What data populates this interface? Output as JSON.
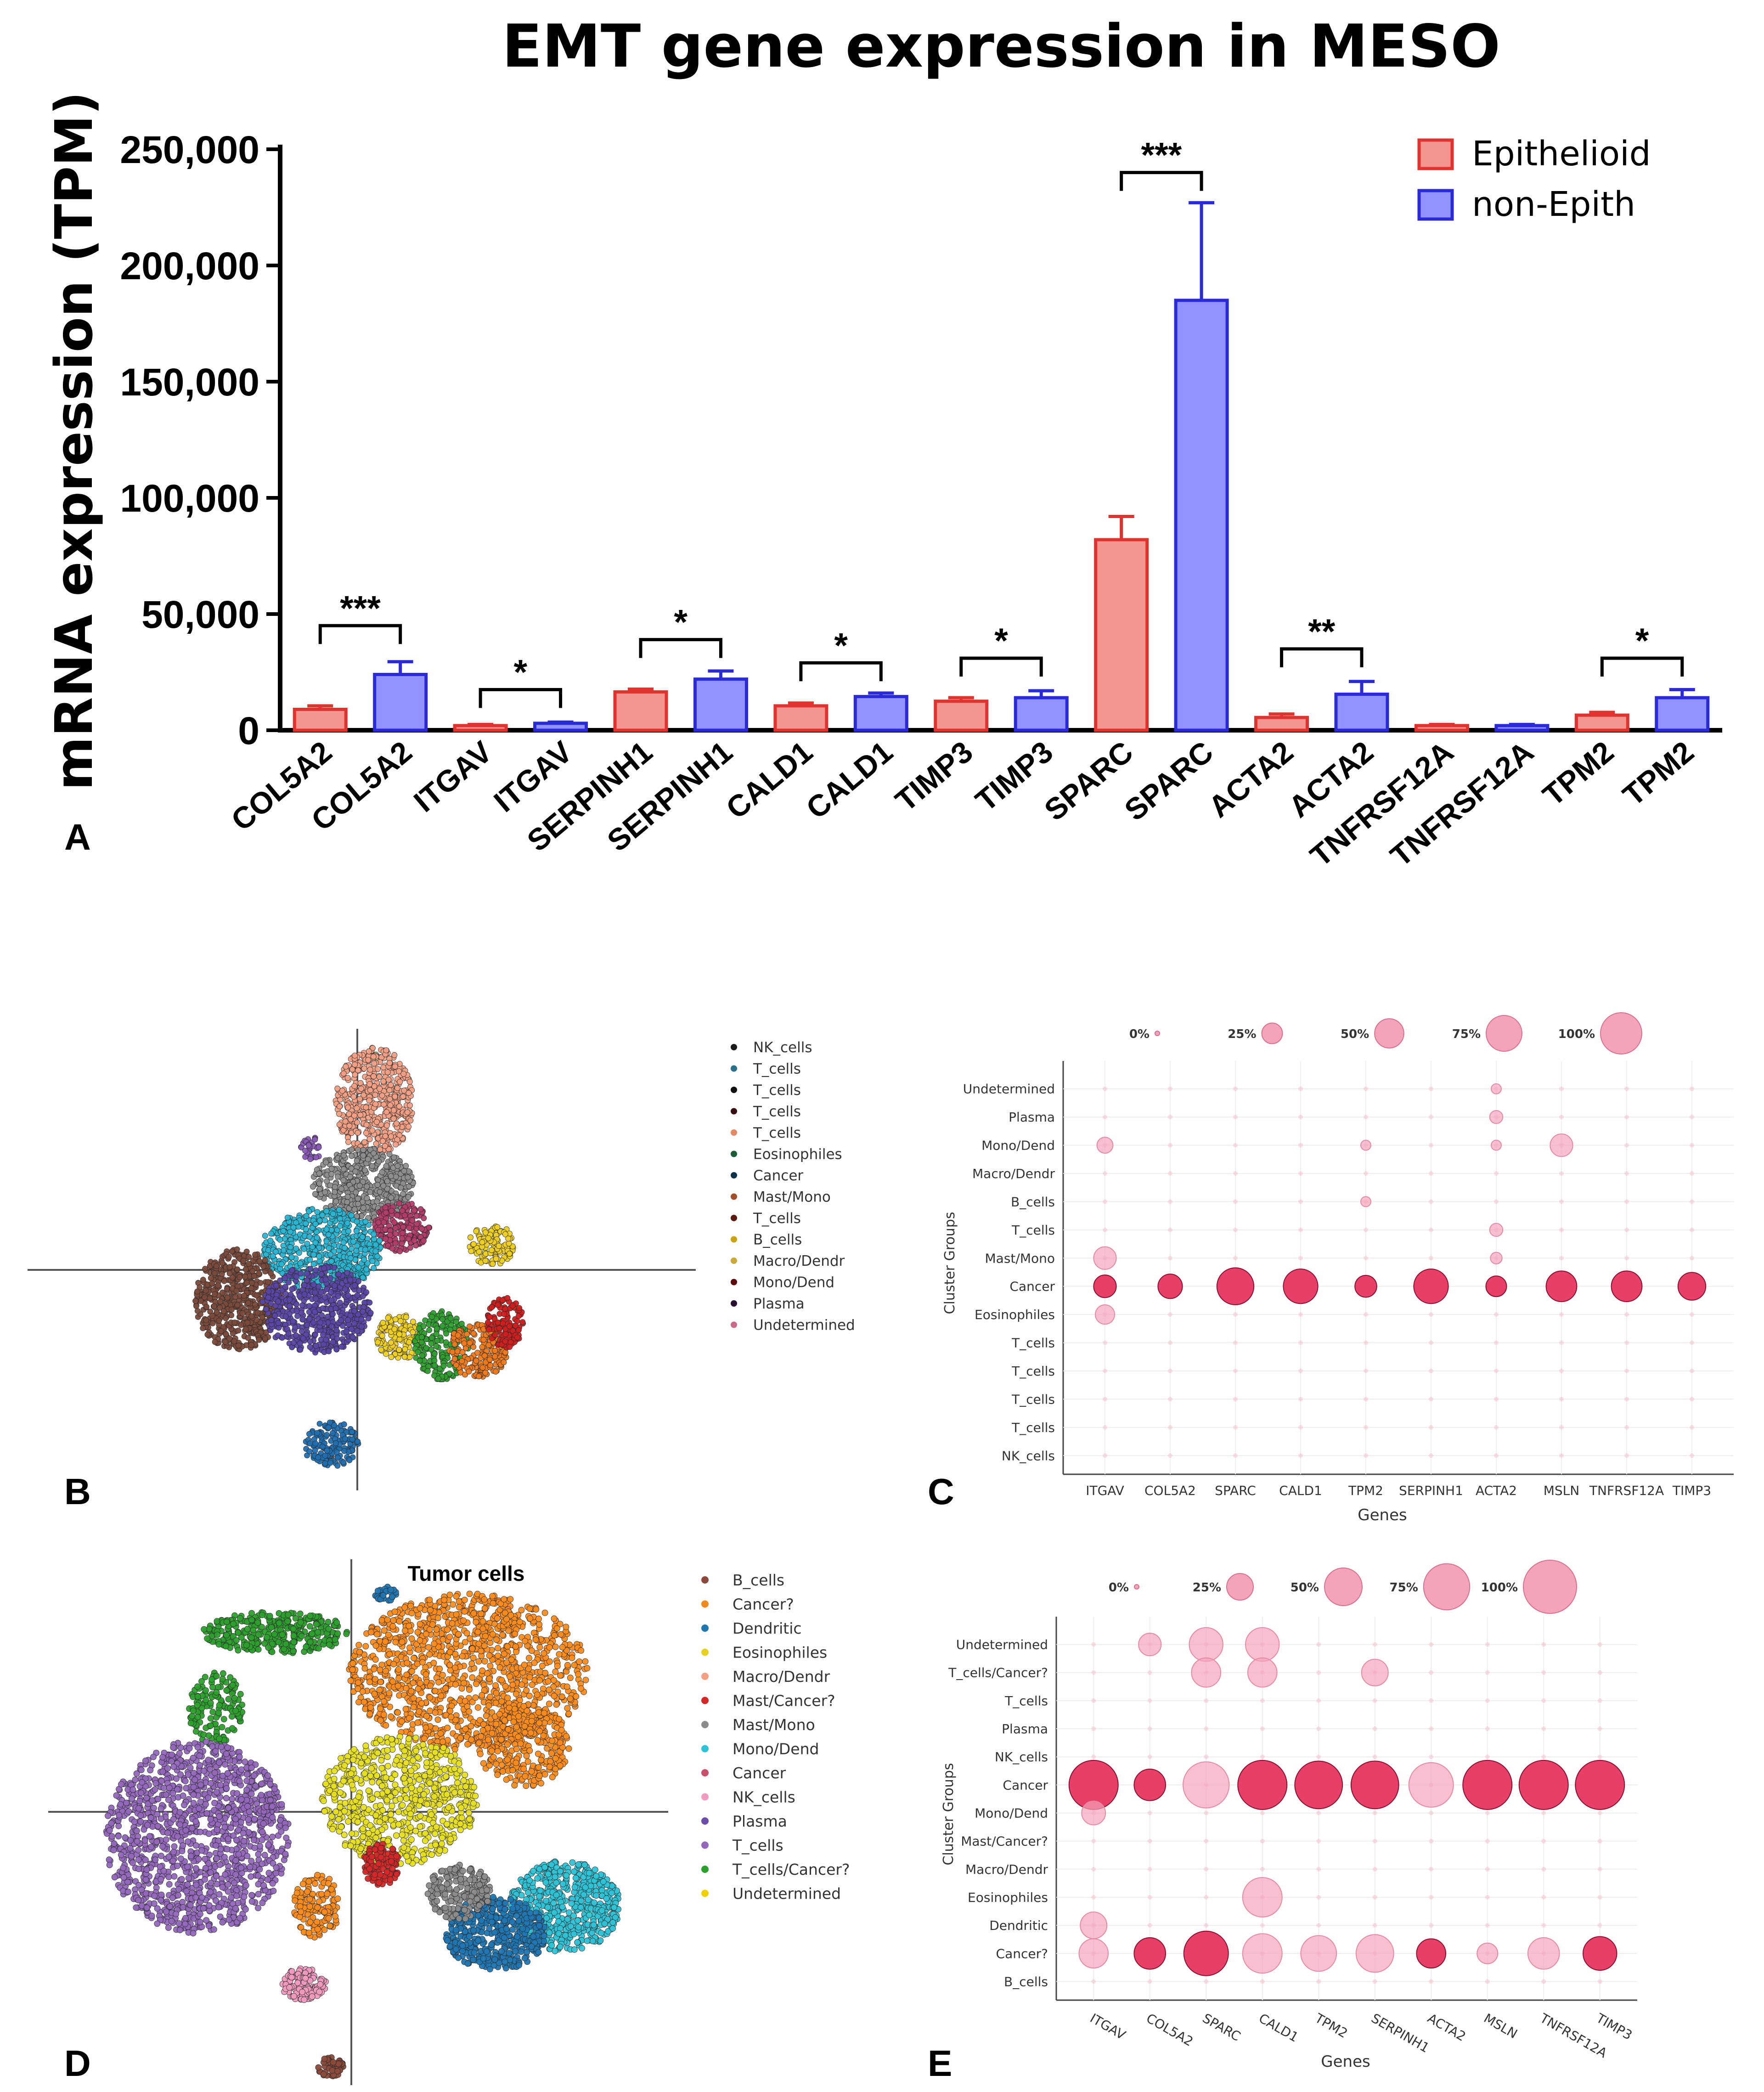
{
  "colors": {
    "epith_fill": "#f5958f",
    "epith_stroke": "#e0322f",
    "nonepith_fill": "#9393ff",
    "nonepith_stroke": "#2a2ad8",
    "dot_strong": "#e6355f",
    "dot_light": "#f3a4bb"
  },
  "chart_data": [
    {
      "panel": "A",
      "type": "bar",
      "title": "EMT gene expression in MESO",
      "ylabel": "mRNA expression (TPM)",
      "ylim": [
        0,
        250000
      ],
      "yticks": [
        0,
        50000,
        100000,
        150000,
        200000,
        250000
      ],
      "ytick_labels": [
        "0",
        "50,000",
        "100,000",
        "150,000",
        "200,000",
        "250,000"
      ],
      "categories": [
        "COL5A2",
        "COL5A2",
        "ITGAV",
        "ITGAV",
        "SERPINH1",
        "SERPINH1",
        "CALD1",
        "CALD1",
        "TIMP3",
        "TIMP3",
        "SPARC",
        "SPARC",
        "ACTA2",
        "ACTA2",
        "TNFRSF12A",
        "TNFRSF12A",
        "TPM2",
        "TPM2"
      ],
      "groups": [
        "Epithelioid",
        "non-Epith",
        "Epithelioid",
        "non-Epith",
        "Epithelioid",
        "non-Epith",
        "Epithelioid",
        "non-Epith",
        "Epithelioid",
        "non-Epith",
        "Epithelioid",
        "non-Epith",
        "Epithelioid",
        "non-Epith",
        "Epithelioid",
        "non-Epith",
        "Epithelioid",
        "non-Epith"
      ],
      "values": [
        9000,
        24000,
        2000,
        3000,
        16500,
        22000,
        10500,
        14500,
        12500,
        14000,
        82000,
        185000,
        5500,
        15500,
        2000,
        2000,
        6500,
        14000
      ],
      "errors": [
        1500,
        5500,
        500,
        500,
        1200,
        3500,
        1200,
        1500,
        1500,
        3000,
        10000,
        42000,
        1500,
        5500,
        500,
        500,
        1200,
        3500
      ],
      "legend": [
        "Epithelioid",
        "non-Epith"
      ],
      "significance": [
        {
          "pair": [
            0,
            1
          ],
          "label": "***",
          "y": 45000
        },
        {
          "pair": [
            2,
            3
          ],
          "label": "*",
          "y": 17500
        },
        {
          "pair": [
            4,
            5
          ],
          "label": "*",
          "y": 39000
        },
        {
          "pair": [
            6,
            7
          ],
          "label": "*",
          "y": 29000
        },
        {
          "pair": [
            8,
            9
          ],
          "label": "*",
          "y": 31000
        },
        {
          "pair": [
            10,
            11
          ],
          "label": "***",
          "y": 240000
        },
        {
          "pair": [
            12,
            13
          ],
          "label": "**",
          "y": 35000
        },
        {
          "pair": [
            16,
            17
          ],
          "label": "*",
          "y": 31000
        }
      ]
    },
    {
      "panel": "B",
      "type": "scatter",
      "title": "",
      "legend": [
        "NK_cells",
        "T_cells",
        "T_cells",
        "T_cells",
        "T_cells",
        "Eosinophiles",
        "Cancer",
        "Mast/Mono",
        "T_cells",
        "B_cells",
        "Macro/Dendr",
        "Mono/Dend",
        "Plasma",
        "Undetermined"
      ],
      "legend_colors": [
        "#1b1b1b",
        "#2b6f8a",
        "#111111",
        "#3a0f14",
        "#e38a64",
        "#1d5e3a",
        "#10324a",
        "#a14e2a",
        "#5a1a10",
        "#c9a40f",
        "#c9a93a",
        "#5c0a0a",
        "#2a1030",
        "#c96a8a"
      ],
      "clusters": [
        {
          "label": "Macro/Dendr",
          "color": "#f4a085"
        },
        {
          "label": "Mast/Mono",
          "color": "#8e8e8e"
        },
        {
          "label": "Plasma",
          "color": "#b33c6a"
        },
        {
          "label": "Cancer",
          "color": "#29b6d4"
        },
        {
          "label": "T_cells",
          "color": "#7b4a3a"
        },
        {
          "label": "T_cells",
          "color": "#5b46a8"
        },
        {
          "label": "B_cells",
          "color": "#f0d020"
        },
        {
          "label": "Eosinophiles",
          "color": "#2fa02f"
        },
        {
          "label": "Mono/Dend",
          "color": "#f07a1a"
        },
        {
          "label": "Undetermined",
          "color": "#d21e1e"
        },
        {
          "label": "NK_cells",
          "color": "#1f6fb2"
        }
      ]
    },
    {
      "panel": "C",
      "type": "scatter",
      "subtype": "dotplot",
      "xlabel": "Genes",
      "ylabel": "Cluster Groups",
      "size_legend": [
        "0%",
        "25%",
        "50%",
        "75%",
        "100%"
      ],
      "genes": [
        "ITGAV",
        "COL5A2",
        "SPARC",
        "CALD1",
        "TPM2",
        "SERPINH1",
        "ACTA2",
        "MSLN",
        "TNFRSF12A",
        "TIMP3"
      ],
      "groups": [
        "Undetermined",
        "Plasma",
        "Mono/Dend",
        "Macro/Dendr",
        "B_cells",
        "T_cells",
        "Mast/Mono",
        "Cancer",
        "Eosinophiles",
        "T_cells",
        "T_cells",
        "T_cells",
        "T_cells",
        "NK_cells"
      ],
      "dots": [
        {
          "gene": 0,
          "group": "Cancer",
          "pct": 30,
          "strong": true
        },
        {
          "gene": 1,
          "group": "Cancer",
          "pct": 35,
          "strong": true
        },
        {
          "gene": 2,
          "group": "Cancer",
          "pct": 80,
          "strong": true
        },
        {
          "gene": 3,
          "group": "Cancer",
          "pct": 70,
          "strong": true
        },
        {
          "gene": 4,
          "group": "Cancer",
          "pct": 28,
          "strong": true
        },
        {
          "gene": 5,
          "group": "Cancer",
          "pct": 70,
          "strong": true
        },
        {
          "gene": 6,
          "group": "Cancer",
          "pct": 25,
          "strong": true
        },
        {
          "gene": 7,
          "group": "Cancer",
          "pct": 55,
          "strong": true
        },
        {
          "gene": 8,
          "group": "Cancer",
          "pct": 55,
          "strong": true
        },
        {
          "gene": 9,
          "group": "Cancer",
          "pct": 45,
          "strong": true
        },
        {
          "gene": 0,
          "group": "Mast/Mono",
          "pct": 30,
          "strong": false
        },
        {
          "gene": 0,
          "group": "Eosinophiles",
          "pct": 22,
          "strong": false
        },
        {
          "gene": 0,
          "group": "Mono/Dend",
          "pct": 15,
          "strong": false
        },
        {
          "gene": 7,
          "group": "Mono/Dend",
          "pct": 30,
          "strong": false
        },
        {
          "gene": 6,
          "group": "Plasma",
          "pct": 10,
          "strong": false
        },
        {
          "gene": 6,
          "group": "T_cells",
          "pct": 10,
          "strong": false
        },
        {
          "gene": 6,
          "group": "Mast/Mono",
          "pct": 8,
          "strong": false
        },
        {
          "gene": 6,
          "group": "Mono/Dend",
          "pct": 6,
          "strong": false
        },
        {
          "gene": 4,
          "group": "B_cells",
          "pct": 6,
          "strong": false
        },
        {
          "gene": 4,
          "group": "Mono/Dend",
          "pct": 6,
          "strong": false
        },
        {
          "gene": 6,
          "group": "Undetermined",
          "pct": 6,
          "strong": false
        }
      ]
    },
    {
      "panel": "D",
      "type": "scatter",
      "title": "Tumor cells",
      "legend": [
        "B_cells",
        "Cancer?",
        "Dendritic",
        "Eosinophiles",
        "Macro/Dendr",
        "Mast/Cancer?",
        "Mast/Mono",
        "Mono/Dend",
        "Cancer",
        "NK_cells",
        "Plasma",
        "T_cells",
        "T_cells/Cancer?",
        "Undetermined"
      ],
      "legend_colors": [
        "#8b4a3a",
        "#f08a1e",
        "#1f77b4",
        "#e8d020",
        "#f4a085",
        "#d62728",
        "#8c8c8c",
        "#2ec4d8",
        "#c9506a",
        "#f29ac0",
        "#6a4ea8",
        "#9467bd",
        "#2ca02c",
        "#f0d000"
      ],
      "clusters": [
        {
          "label": "Cancer?",
          "color": "#ff8c1a"
        },
        {
          "label": "T_cells/Cancer?",
          "color": "#2ca02c"
        },
        {
          "label": "T_cells",
          "color": "#9467bd"
        },
        {
          "label": "Undetermined",
          "color": "#e8e020"
        },
        {
          "label": "Mono/Dend",
          "color": "#2ec4d8"
        },
        {
          "label": "Dendritic",
          "color": "#1f77b4"
        },
        {
          "label": "Mast/Mono",
          "color": "#8c8c8c"
        },
        {
          "label": "NK_cells",
          "color": "#f29ac0"
        },
        {
          "label": "B_cells",
          "color": "#8b4a3a"
        },
        {
          "label": "Mast/Cancer?",
          "color": "#d62728"
        }
      ]
    },
    {
      "panel": "E",
      "type": "scatter",
      "subtype": "dotplot",
      "xlabel": "Genes",
      "ylabel": "Cluster Groups",
      "size_legend": [
        "0%",
        "25%",
        "50%",
        "75%",
        "100%"
      ],
      "genes": [
        "ITGAV",
        "COL5A2",
        "SPARC",
        "CALD1",
        "TPM2",
        "SERPINH1",
        "ACTA2",
        "MSLN",
        "TNFRSF12A",
        "TIMP3"
      ],
      "groups": [
        "Undetermined",
        "T_cells/Cancer?",
        "T_cells",
        "Plasma",
        "NK_cells",
        "Cancer",
        "Mono/Dend",
        "Mast/Cancer?",
        "Macro/Dendr",
        "Eosinophiles",
        "Dendritic",
        "Cancer?",
        "B_cells"
      ],
      "dots": [
        {
          "gene": 0,
          "group": "Cancer",
          "pct": 85,
          "strong": true
        },
        {
          "gene": 1,
          "group": "Cancer",
          "pct": 35,
          "strong": true
        },
        {
          "gene": 2,
          "group": "Cancer",
          "pct": 75,
          "strong": false
        },
        {
          "gene": 3,
          "group": "Cancer",
          "pct": 85,
          "strong": true
        },
        {
          "gene": 4,
          "group": "Cancer",
          "pct": 80,
          "strong": true
        },
        {
          "gene": 5,
          "group": "Cancer",
          "pct": 80,
          "strong": true
        },
        {
          "gene": 6,
          "group": "Cancer",
          "pct": 70,
          "strong": false
        },
        {
          "gene": 7,
          "group": "Cancer",
          "pct": 85,
          "strong": true
        },
        {
          "gene": 8,
          "group": "Cancer",
          "pct": 85,
          "strong": true
        },
        {
          "gene": 9,
          "group": "Cancer",
          "pct": 85,
          "strong": true
        },
        {
          "gene": 0,
          "group": "Cancer?",
          "pct": 30,
          "strong": false
        },
        {
          "gene": 1,
          "group": "Cancer?",
          "pct": 35,
          "strong": true
        },
        {
          "gene": 2,
          "group": "Cancer?",
          "pct": 70,
          "strong": true
        },
        {
          "gene": 3,
          "group": "Cancer?",
          "pct": 55,
          "strong": false
        },
        {
          "gene": 4,
          "group": "Cancer?",
          "pct": 45,
          "strong": false
        },
        {
          "gene": 5,
          "group": "Cancer?",
          "pct": 50,
          "strong": false
        },
        {
          "gene": 6,
          "group": "Cancer?",
          "pct": 30,
          "strong": true
        },
        {
          "gene": 7,
          "group": "Cancer?",
          "pct": 15,
          "strong": false
        },
        {
          "gene": 8,
          "group": "Cancer?",
          "pct": 35,
          "strong": false
        },
        {
          "gene": 9,
          "group": "Cancer?",
          "pct": 40,
          "strong": true
        },
        {
          "gene": 3,
          "group": "Eosinophiles",
          "pct": 55,
          "strong": false
        },
        {
          "gene": 0,
          "group": "Dendritic",
          "pct": 25,
          "strong": false
        },
        {
          "gene": 0,
          "group": "Mono/Dend",
          "pct": 20,
          "strong": false
        },
        {
          "gene": 2,
          "group": "Undetermined",
          "pct": 40,
          "strong": false
        },
        {
          "gene": 3,
          "group": "Undetermined",
          "pct": 40,
          "strong": false
        },
        {
          "gene": 2,
          "group": "T_cells/Cancer?",
          "pct": 30,
          "strong": false
        },
        {
          "gene": 3,
          "group": "T_cells/Cancer?",
          "pct": 30,
          "strong": false
        },
        {
          "gene": 5,
          "group": "T_cells/Cancer?",
          "pct": 25,
          "strong": false
        },
        {
          "gene": 1,
          "group": "Undetermined",
          "pct": 18,
          "strong": false
        }
      ]
    }
  ],
  "panel_labels": [
    "A",
    "B",
    "C",
    "D",
    "E"
  ]
}
